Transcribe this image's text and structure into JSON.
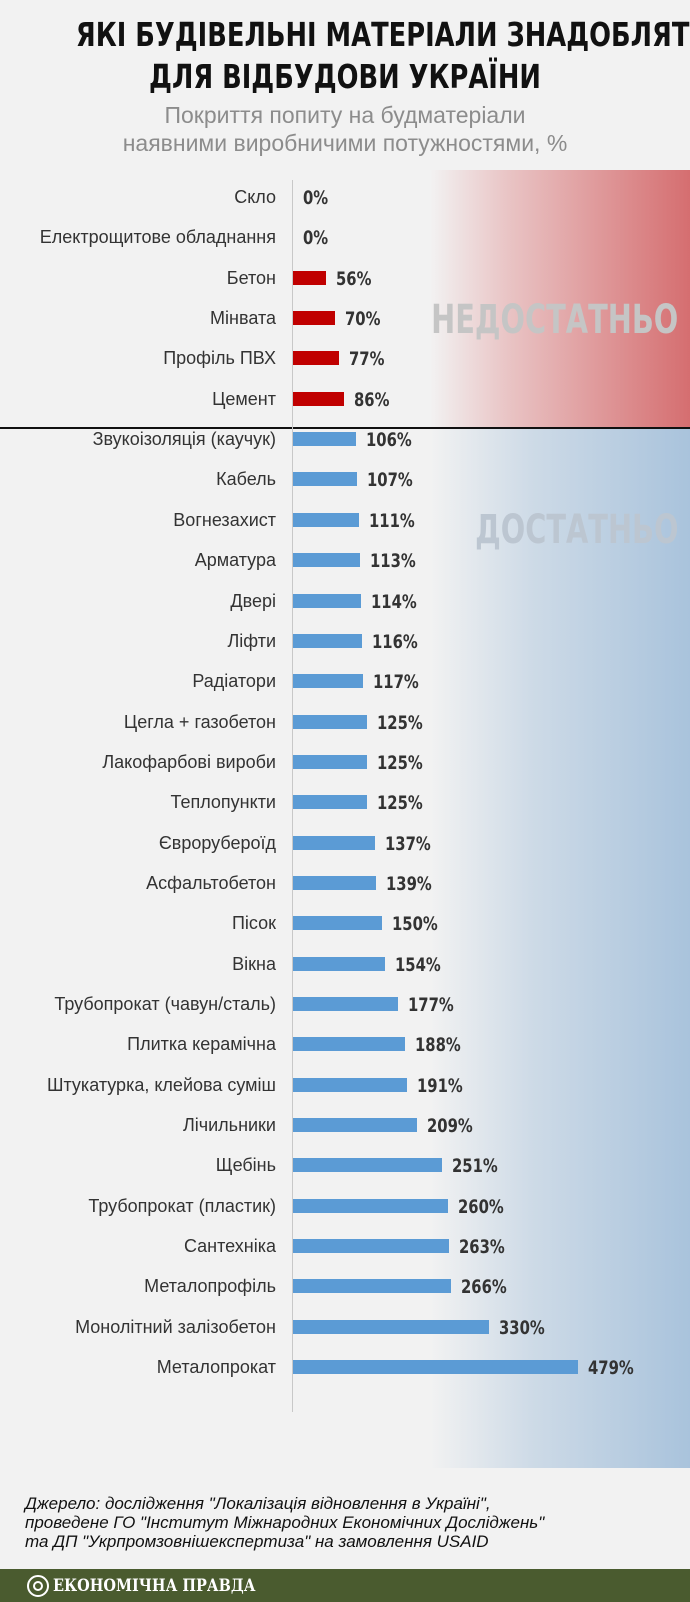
{
  "title": {
    "line1": "ЯКІ БУДІВЕЛЬНІ МАТЕРІАЛИ ЗНАДОБЛЯТЬСЯ",
    "line2": "ДЛЯ ВІДБУДОВИ УКРАЇНИ"
  },
  "subtitle": {
    "line1": "Покриття попиту на будматеріали",
    "line2": "наявними виробничими потужностями, %"
  },
  "zones": {
    "insufficient_label": "НЕДОСТАТНЬО",
    "sufficient_label": "ДОСТАТНЬО"
  },
  "colors": {
    "insufficient_bar": "#c00000",
    "sufficient_bar": "#5b9bd5",
    "insufficient_zone": "#d56e70",
    "sufficient_zone": "#a9c3dc",
    "footer_bg": "#4a5b2f"
  },
  "chart_data": {
    "type": "bar",
    "orientation": "horizontal",
    "title": "ЯКІ БУДІВЕЛЬНІ МАТЕРІАЛИ ЗНАДОБЛЯТЬСЯ ДЛЯ ВІДБУДОВИ УКРАЇНИ",
    "subtitle": "Покриття попиту на будматеріали наявними виробничими потужностями, %",
    "unit": "%",
    "grid": false,
    "categories": [
      "Скло",
      "Електрощитове обладнання",
      "Бетон",
      "Мінвата",
      "Профіль ПВХ",
      "Цемент",
      "Звукоізоляція (каучук)",
      "Кабель",
      "Вогнезахист",
      "Арматура",
      "Двері",
      "Ліфти",
      "Радіатори",
      "Цегла + газобетон",
      "Лакофарбові вироби",
      "Теплопункти",
      "Єврорубероїд",
      "Асфальтобетон",
      "Пісок",
      "Вікна",
      "Трубопрокат (чавун/сталь)",
      "Плитка керамічна",
      "Штукатурка, клейова суміш",
      "Лічильники",
      "Щебінь",
      "Трубопрокат (пластик)",
      "Сантехніка",
      "Металопрофіль",
      "Монолітний залізобетон",
      "Металопрокат"
    ],
    "values": [
      0,
      0,
      56,
      70,
      77,
      86,
      106,
      107,
      111,
      113,
      114,
      116,
      117,
      125,
      125,
      125,
      137,
      139,
      150,
      154,
      177,
      188,
      191,
      209,
      251,
      260,
      263,
      266,
      330,
      479
    ],
    "value_labels": [
      "0%",
      "0%",
      "56%",
      "70%",
      "77%",
      "86%",
      "106%",
      "107%",
      "111%",
      "113%",
      "114%",
      "116%",
      "117%",
      "125%",
      "125%",
      "125%",
      "137%",
      "139%",
      "150%",
      "154%",
      "177%",
      "188%",
      "191%",
      "209%",
      "251%",
      "260%",
      "263%",
      "266%",
      "330%",
      "479%"
    ],
    "groups": {
      "insufficient_count": 6
    }
  },
  "source": {
    "line1": "Джерело: дослідження \"Локалізація відновлення в Україні\",",
    "line2": "проведене ГО \"Інститут Міжнародних Економічних Досліджень\"",
    "line3": "та ДП \"Укрпромзовнішекспертиза\" на замовлення USAID"
  },
  "footer": {
    "logo_text": "ЕКОНОМІЧНА ПРАВДА"
  }
}
